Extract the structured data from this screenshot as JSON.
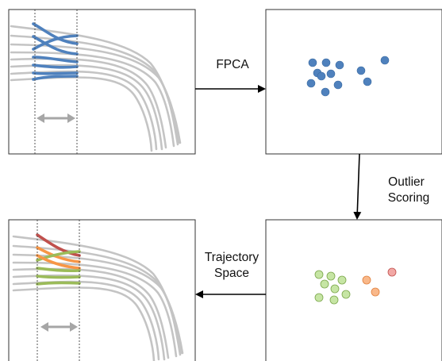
{
  "labels": {
    "fpca": "FPCA",
    "outlier_line1": "Outlier",
    "outlier_line2": "Scoring",
    "trajectory_line1": "Trajectory",
    "trajectory_line2": "Space"
  },
  "colors": {
    "trajectory_gray": "#c4c4c4",
    "blue_highlight": "#4f81bd",
    "red_outlier": "#c0504d",
    "orange_outlier": "#f79646",
    "green_inlier": "#9bbb59",
    "point_blue": "#4f81bd",
    "point_green": "#c6e5a4",
    "point_orange": "#f9b88a",
    "point_red": "#f2a8a5",
    "double_arrow": "#a6a6a6"
  },
  "point_clusters": {
    "fpca_scores": {
      "count": 12,
      "color": "point_blue"
    },
    "outlier_scores": {
      "green_count": 8,
      "orange_count": 2,
      "red_count": 1
    }
  }
}
